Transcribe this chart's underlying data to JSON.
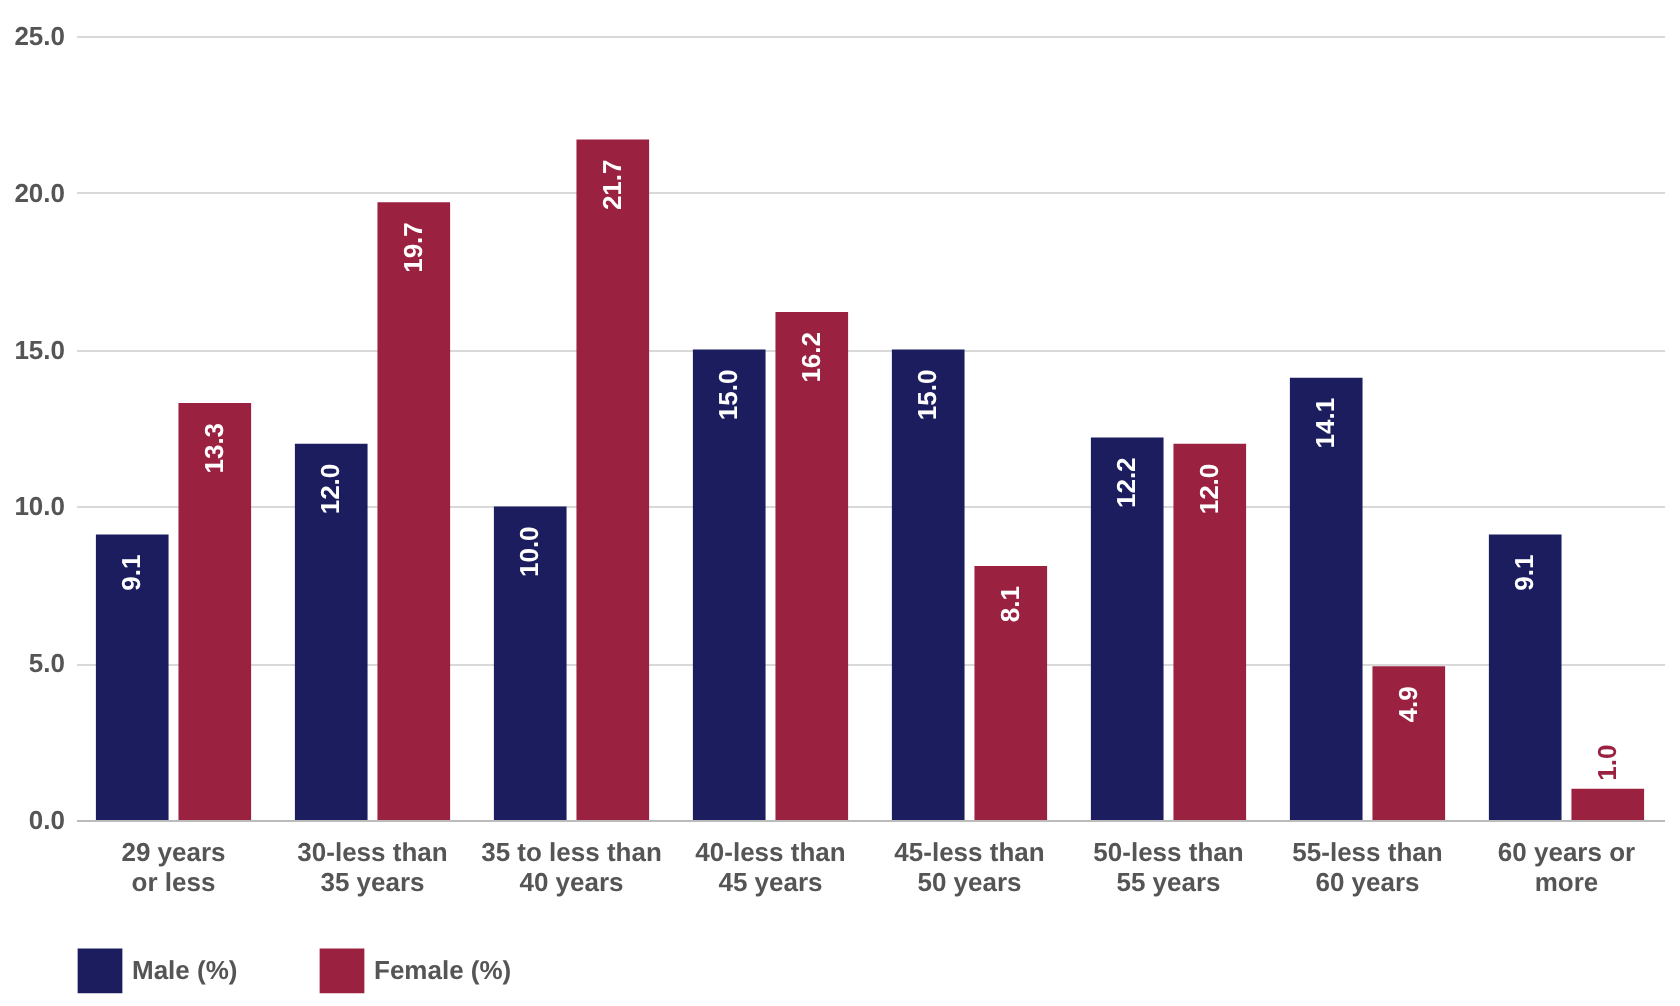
{
  "chart_data": {
    "type": "bar",
    "categories": [
      "29 years\nor less",
      "30-less than\n35 years",
      "35 to less than\n40 years",
      "40-less than\n45 years",
      "45-less than\n50 years",
      "50-less than\n55 years",
      "55-less than\n60 years",
      "60 years or\nmore"
    ],
    "series": [
      {
        "name": "Male (%)",
        "color": "#1b1d5e",
        "values": [
          9.1,
          12.0,
          10.0,
          15.0,
          15.0,
          12.2,
          14.1,
          9.1
        ],
        "value_labels": [
          "9.1",
          "12.0",
          "10.0",
          "15.0",
          "15.0",
          "12.2",
          "14.1",
          "9.1"
        ]
      },
      {
        "name": "Female (%)",
        "color": "#9b2141",
        "values": [
          13.3,
          19.7,
          21.7,
          16.2,
          8.1,
          12.0,
          4.9,
          1.0
        ],
        "value_labels": [
          "13.3",
          "19.7",
          "21.7",
          "16.2",
          "8.1",
          "12.0",
          "4.9",
          "1.0"
        ]
      }
    ],
    "ylim": [
      0,
      25
    ],
    "yticks": [
      {
        "value": 0,
        "label": "0.0"
      },
      {
        "value": 5,
        "label": "5.0"
      },
      {
        "value": 10,
        "label": "10.0"
      },
      {
        "value": 15,
        "label": "15.0"
      },
      {
        "value": 20,
        "label": "20.0"
      },
      {
        "value": 25,
        "label": "25.0"
      }
    ],
    "grid": "y",
    "legend": "bottom"
  }
}
